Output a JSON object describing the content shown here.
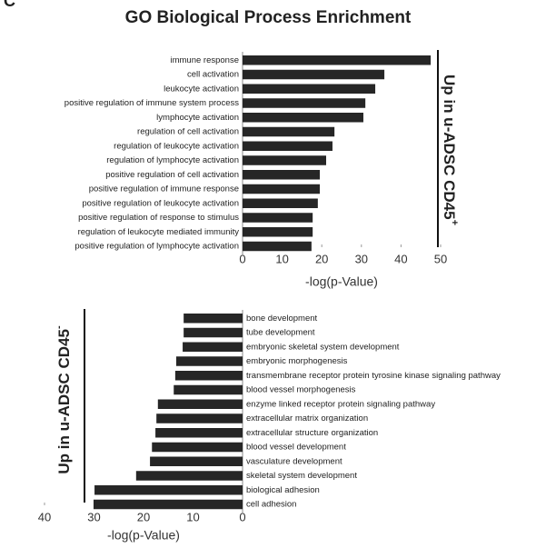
{
  "panel_label": "C",
  "title": "GO Biological Process Enrichment",
  "chart_data": [
    {
      "type": "bar",
      "orientation": "horizontal",
      "color": "#262626",
      "categories": [
        "immune response",
        "cell activation",
        "leukocyte activation",
        "positive regulation of immune system process",
        "lymphocyte activation",
        "regulation of cell activation",
        "regulation of leukocyte activation",
        "regulation of lymphocyte activation",
        "positive regulation of cell activation",
        "positive regulation of immune response",
        "positive regulation of leukocyte activation",
        "positive regulation of response to stimulus",
        "regulation of leukocyte mediated immunity",
        "positive regulation of lymphocyte activation"
      ],
      "values": [
        47.5,
        35.8,
        33.5,
        31,
        30.5,
        23.2,
        22.7,
        21.1,
        19.5,
        19.5,
        19,
        17.7,
        17.7,
        17.4
      ],
      "xlim": [
        0,
        50
      ],
      "xticks": [
        0,
        10,
        20,
        30,
        40,
        50
      ],
      "x_inverted": false,
      "xlabel": "-log(p-Value)",
      "side_label": "Up in u-ADSC CD45",
      "side_label_sup": "+"
    },
    {
      "type": "bar",
      "orientation": "horizontal",
      "color": "#262626",
      "categories": [
        "bone development",
        "tube development",
        "embryonic skeletal system development",
        "embryonic morphogenesis",
        "transmembrane receptor protein tyrosine kinase signaling pathway",
        "blood vessel morphogenesis",
        "enzyme linked receptor protein signaling pathway",
        "extracellular matrix organization",
        "extracellular structure organization",
        "blood vessel development",
        "vasculature development",
        "skeletal system development",
        "biological adhesion",
        "cell adhesion"
      ],
      "values": [
        11.9,
        11.9,
        12.1,
        13.4,
        13.6,
        13.9,
        17.1,
        17.4,
        17.6,
        18.3,
        18.7,
        21.5,
        29.9,
        30.1
      ],
      "xlim": [
        0,
        40
      ],
      "xticks": [
        0,
        10,
        20,
        30,
        40
      ],
      "x_inverted": true,
      "xlabel": "-log(p-Value)",
      "side_label": "Up in u-ADSC CD45",
      "side_label_sup": "-"
    }
  ]
}
